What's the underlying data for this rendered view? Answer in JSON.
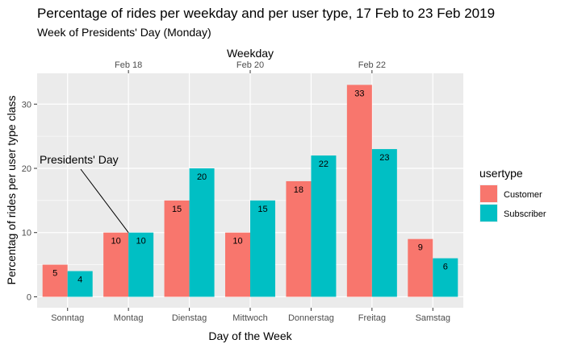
{
  "chart_data": {
    "type": "bar",
    "title": "Percentage of rides per weekday and per user type, 17 Feb to 23 Feb 2019",
    "subtitle": "Week of Presidents' Day (Monday)",
    "xlabel": "Day of the Week",
    "ylabel": "Percentag of rides per user type class",
    "secondary_x_axis": {
      "title": "Weekday",
      "ticks": [
        {
          "label": "Feb 18",
          "category_index": 1
        },
        {
          "label": "Feb 20",
          "category_index": 3
        },
        {
          "label": "Feb 22",
          "category_index": 5
        }
      ]
    },
    "categories": [
      "Sonntag",
      "Montag",
      "Dienstag",
      "Mittwoch",
      "Donnerstag",
      "Freitag",
      "Samstag"
    ],
    "series": [
      {
        "name": "Customer",
        "color": "#F8766D",
        "values": [
          5,
          10,
          15,
          10,
          18,
          33,
          9
        ],
        "labels": [
          "5",
          "10",
          "15",
          "10",
          "18",
          "33",
          "9"
        ]
      },
      {
        "name": "Subscriber",
        "color": "#00BFC4",
        "values": [
          4,
          10,
          20,
          15,
          22,
          23,
          6
        ],
        "labels": [
          "4",
          "10",
          "20",
          "15",
          "22",
          "23",
          "6"
        ]
      }
    ],
    "ylim": [
      -1.7,
      34.8
    ],
    "yticks": [
      0,
      10,
      20,
      30
    ],
    "grid": true,
    "legend": {
      "title": "usertype",
      "position": "right"
    },
    "annotation": {
      "text": "Presidents' Day",
      "points_to": {
        "category": "Montag",
        "value": 10
      }
    },
    "panel_background": "#EBEBEB"
  }
}
